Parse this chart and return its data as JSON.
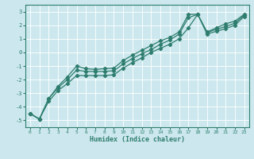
{
  "title": "",
  "xlabel": "Humidex (Indice chaleur)",
  "ylabel": "",
  "bg_color": "#cce8ee",
  "grid_color": "#ffffff",
  "line_color": "#2e7d6e",
  "marker": "D",
  "markersize": 2.2,
  "linewidth": 0.9,
  "xlim": [
    -0.5,
    23.5
  ],
  "ylim": [
    -5.5,
    3.5
  ],
  "xticks": [
    0,
    1,
    2,
    3,
    4,
    5,
    6,
    7,
    8,
    9,
    10,
    11,
    12,
    13,
    14,
    15,
    16,
    17,
    18,
    19,
    20,
    21,
    22,
    23
  ],
  "yticks": [
    -5,
    -4,
    -3,
    -2,
    -1,
    0,
    1,
    2,
    3
  ],
  "line1_x": [
    0,
    1,
    2,
    3,
    4,
    5,
    6,
    7,
    8,
    9,
    10,
    11,
    12,
    13,
    14,
    15,
    16,
    17,
    18,
    19,
    20,
    21,
    22,
    23
  ],
  "line1_y": [
    -4.5,
    -4.9,
    -3.4,
    -2.5,
    -1.8,
    -1.0,
    -1.2,
    -1.25,
    -1.2,
    -1.15,
    -0.6,
    -0.2,
    0.15,
    0.5,
    0.85,
    1.1,
    1.5,
    2.8,
    2.8,
    1.5,
    1.8,
    2.1,
    2.3,
    2.8
  ],
  "line2_x": [
    0,
    1,
    2,
    3,
    4,
    5,
    6,
    7,
    8,
    9,
    10,
    11,
    12,
    13,
    14,
    15,
    16,
    17,
    18,
    19,
    20,
    21,
    22,
    23
  ],
  "line2_y": [
    -4.5,
    -4.9,
    -3.4,
    -2.6,
    -2.0,
    -1.3,
    -1.4,
    -1.4,
    -1.4,
    -1.35,
    -0.85,
    -0.45,
    -0.1,
    0.2,
    0.6,
    0.9,
    1.35,
    2.55,
    2.8,
    1.45,
    1.7,
    1.9,
    2.15,
    2.75
  ],
  "line3_x": [
    0,
    1,
    2,
    3,
    4,
    5,
    6,
    7,
    8,
    9,
    10,
    11,
    12,
    13,
    14,
    15,
    16,
    17,
    18,
    19,
    20,
    21,
    22,
    23
  ],
  "line3_y": [
    -4.5,
    -4.9,
    -3.6,
    -2.8,
    -2.3,
    -1.7,
    -1.7,
    -1.7,
    -1.7,
    -1.65,
    -1.15,
    -0.75,
    -0.4,
    0.0,
    0.3,
    0.6,
    1.0,
    1.8,
    2.8,
    1.35,
    1.55,
    1.75,
    2.0,
    2.65
  ]
}
